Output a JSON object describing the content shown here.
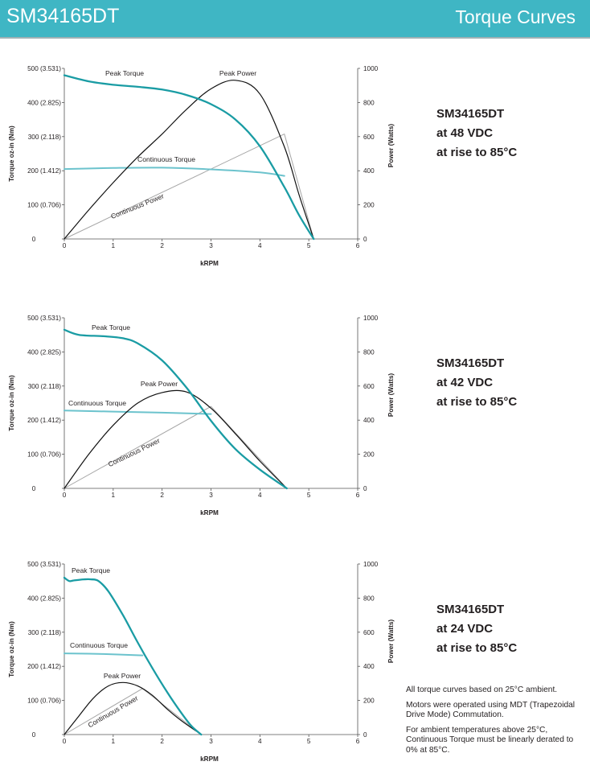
{
  "header": {
    "model": "SM34165DT",
    "section": "Torque Curves"
  },
  "notes": [
    "All torque curves based on 25°C ambient.",
    "Motors were operated using MDT (Trapezoidal Drive Mode) Commutation.",
    "For ambient temperatures above 25°C, Continuous Torque must be linearly derated to 0% at 85°C."
  ],
  "chart_data": [
    {
      "type": "line",
      "info": [
        "SM34165DT",
        "at 48 VDC",
        "at rise to 85°C"
      ],
      "xlabel": "kRPM",
      "ylabel": "Torque oz-in (Nm)",
      "y2label": "Power (Watts)",
      "xlim": [
        0,
        6
      ],
      "ylim": [
        0,
        500
      ],
      "y2lim": [
        0,
        1000
      ],
      "xticks": [
        "0",
        "1",
        "2",
        "3",
        "4",
        "5",
        "6"
      ],
      "yticks": [
        "0",
        "100 (0.706)",
        "200 (1.412)",
        "300 (2.118)",
        "400 (2.825)",
        "500 (3.531)"
      ],
      "y2ticks": [
        "0",
        "200",
        "400",
        "600",
        "800",
        "1000"
      ],
      "series": [
        {
          "name": "Peak Torque",
          "axis": "left",
          "color": "#1a9ca4",
          "width": 2.3,
          "x": [
            0,
            0.5,
            1,
            1.5,
            2,
            2.5,
            3,
            3.5,
            4,
            4.5,
            4.8,
            5.1
          ],
          "y": [
            480,
            462,
            452,
            446,
            438,
            422,
            395,
            350,
            272,
            152,
            70,
            0
          ]
        },
        {
          "name": "Continuous Torque",
          "axis": "left",
          "color": "#6cc3cd",
          "width": 2,
          "x": [
            0,
            1,
            2,
            3,
            4,
            4.5
          ],
          "y": [
            205,
            208,
            209,
            204,
            195,
            185
          ]
        },
        {
          "name": "Peak Power",
          "axis": "right",
          "color": "#111111",
          "width": 1.2,
          "x": [
            0,
            0.5,
            1,
            1.5,
            2,
            2.5,
            3,
            3.5,
            4,
            4.5,
            4.8,
            5.1
          ],
          "y": [
            0,
            170,
            330,
            480,
            615,
            760,
            880,
            930,
            850,
            540,
            260,
            0
          ]
        },
        {
          "name": "Continuous Power",
          "axis": "right",
          "color": "#a6a6a6",
          "width": 1,
          "x": [
            0,
            4.5,
            5.1
          ],
          "y": [
            0,
            615,
            0
          ]
        }
      ],
      "annotations": [
        "Peak Torque",
        "Peak Power",
        "Continuous Torque",
        "Continuous Power"
      ]
    },
    {
      "type": "line",
      "info": [
        "SM34165DT",
        "at 42 VDC",
        "at rise to 85°C"
      ],
      "xlabel": "kRPM",
      "ylabel": "Torque oz-in (Nm)",
      "y2label": "Power (Watts)",
      "xlim": [
        0,
        6
      ],
      "ylim": [
        0,
        500
      ],
      "y2lim": [
        0,
        1000
      ],
      "xticks": [
        "0",
        "1",
        "2",
        "3",
        "4",
        "5",
        "6"
      ],
      "yticks": [
        "0",
        "100 (0.706)",
        "200 (1.412)",
        "300 (2.118)",
        "400 (2.825)",
        "500 (3.531)"
      ],
      "y2ticks": [
        "0",
        "200",
        "400",
        "600",
        "800",
        "1000"
      ],
      "series": [
        {
          "name": "Peak Torque",
          "axis": "left",
          "color": "#1a9ca4",
          "width": 2.3,
          "x": [
            0,
            0.3,
            0.8,
            1.2,
            1.5,
            2,
            2.5,
            3,
            3.5,
            4,
            4.55
          ],
          "y": [
            465,
            450,
            446,
            440,
            425,
            375,
            295,
            198,
            115,
            55,
            0
          ]
        },
        {
          "name": "Continuous Torque",
          "axis": "left",
          "color": "#6cc3cd",
          "width": 2,
          "x": [
            0,
            1,
            2,
            3
          ],
          "y": [
            228,
            225,
            222,
            218
          ]
        },
        {
          "name": "Peak Power",
          "axis": "right",
          "color": "#111111",
          "width": 1.2,
          "x": [
            0,
            0.5,
            1,
            1.5,
            2,
            2.5,
            3,
            3.5,
            4,
            4.55
          ],
          "y": [
            0,
            200,
            370,
            500,
            562,
            565,
            470,
            320,
            160,
            0
          ]
        },
        {
          "name": "Continuous Power",
          "axis": "right",
          "color": "#a6a6a6",
          "width": 1,
          "x": [
            0,
            3,
            4.55
          ],
          "y": [
            0,
            480,
            0
          ]
        }
      ],
      "annotations": [
        "Peak Torque",
        "Peak Power",
        "Continuous Torque",
        "Continuous Power"
      ]
    },
    {
      "type": "line",
      "info": [
        "SM34165DT",
        "at 24 VDC",
        "at rise to 85°C"
      ],
      "xlabel": "kRPM",
      "ylabel": "Torque oz-in (Nm)",
      "y2label": "Power (Watts)",
      "xlim": [
        0,
        6
      ],
      "ylim": [
        0,
        500
      ],
      "y2lim": [
        0,
        1000
      ],
      "xticks": [
        "0",
        "1",
        "2",
        "3",
        "4",
        "5",
        "6"
      ],
      "yticks": [
        "0",
        "100 (0.706)",
        "200 (1.412)",
        "300 (2.118)",
        "400 (2.825)",
        "500 (3.531)"
      ],
      "y2ticks": [
        "0",
        "200",
        "400",
        "600",
        "800",
        "1000"
      ],
      "series": [
        {
          "name": "Peak Torque",
          "axis": "left",
          "color": "#1a9ca4",
          "width": 2.3,
          "x": [
            0,
            0.1,
            0.2,
            0.4,
            0.55,
            0.7,
            0.9,
            1.2,
            1.5,
            1.8,
            2.1,
            2.4,
            2.6,
            2.8
          ],
          "y": [
            460,
            450,
            452,
            455,
            455,
            450,
            420,
            350,
            270,
            195,
            125,
            62,
            25,
            0
          ]
        },
        {
          "name": "Continuous Torque",
          "axis": "left",
          "color": "#6cc3cd",
          "width": 2,
          "x": [
            0,
            0.8,
            1.6
          ],
          "y": [
            238,
            236,
            232
          ]
        },
        {
          "name": "Peak Power",
          "axis": "right",
          "color": "#111111",
          "width": 1.2,
          "x": [
            0,
            0.3,
            0.6,
            0.9,
            1.2,
            1.5,
            1.8,
            2.1,
            2.4,
            2.8
          ],
          "y": [
            0,
            110,
            215,
            285,
            305,
            285,
            230,
            150,
            80,
            0
          ]
        },
        {
          "name": "Continuous Power",
          "axis": "right",
          "color": "#a6a6a6",
          "width": 1,
          "x": [
            0,
            1.6,
            2.8
          ],
          "y": [
            0,
            270,
            0
          ]
        }
      ],
      "annotations": [
        "Peak Torque",
        "Peak Power",
        "Continuous Torque",
        "Continuous Power"
      ]
    }
  ]
}
